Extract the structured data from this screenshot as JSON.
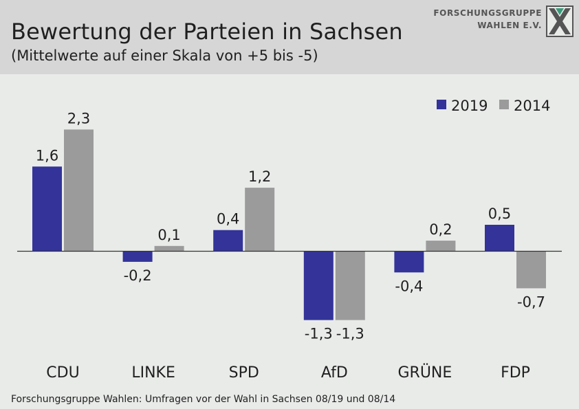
{
  "header": {
    "title": "Bewertung der Parteien in Sachsen",
    "subtitle": "(Mittelwerte auf einer Skala von +5 bis -5)"
  },
  "logo": {
    "line1": "FORSCHUNGSGRUPPE",
    "line2": "WAHLEN E.V."
  },
  "source": "Forschungsgruppe Wahlen: Umfragen vor der Wahl in Sachsen 08/19 und 08/14",
  "colors": {
    "series_2019": "#33339a",
    "series_2014": "#9b9b9b",
    "header_bg": "#d6d6d6",
    "plot_bg": "#e9ebe9"
  },
  "chart_data": {
    "type": "bar",
    "title": "Bewertung der Parteien in Sachsen",
    "subtitle": "(Mittelwerte auf einer Skala von +5 bis -5)",
    "categories": [
      "CDU",
      "LINKE",
      "SPD",
      "AfD",
      "GRÜNE",
      "FDP"
    ],
    "series": [
      {
        "name": "2019",
        "values": [
          1.6,
          -0.2,
          0.4,
          -1.3,
          -0.4,
          0.5
        ],
        "labels": [
          "1,6",
          "-0,2",
          "0,4",
          "-1,3",
          "-0,4",
          "0,5"
        ]
      },
      {
        "name": "2014",
        "values": [
          2.3,
          0.1,
          1.2,
          -1.3,
          0.2,
          -0.7
        ],
        "labels": [
          "2,3",
          "0,1",
          "1,2",
          "-1,3",
          "0,2",
          "-0,7"
        ]
      }
    ],
    "xlabel": "",
    "ylabel": "",
    "ylim": [
      -5,
      5
    ],
    "grid": false,
    "legend": "top-right"
  }
}
